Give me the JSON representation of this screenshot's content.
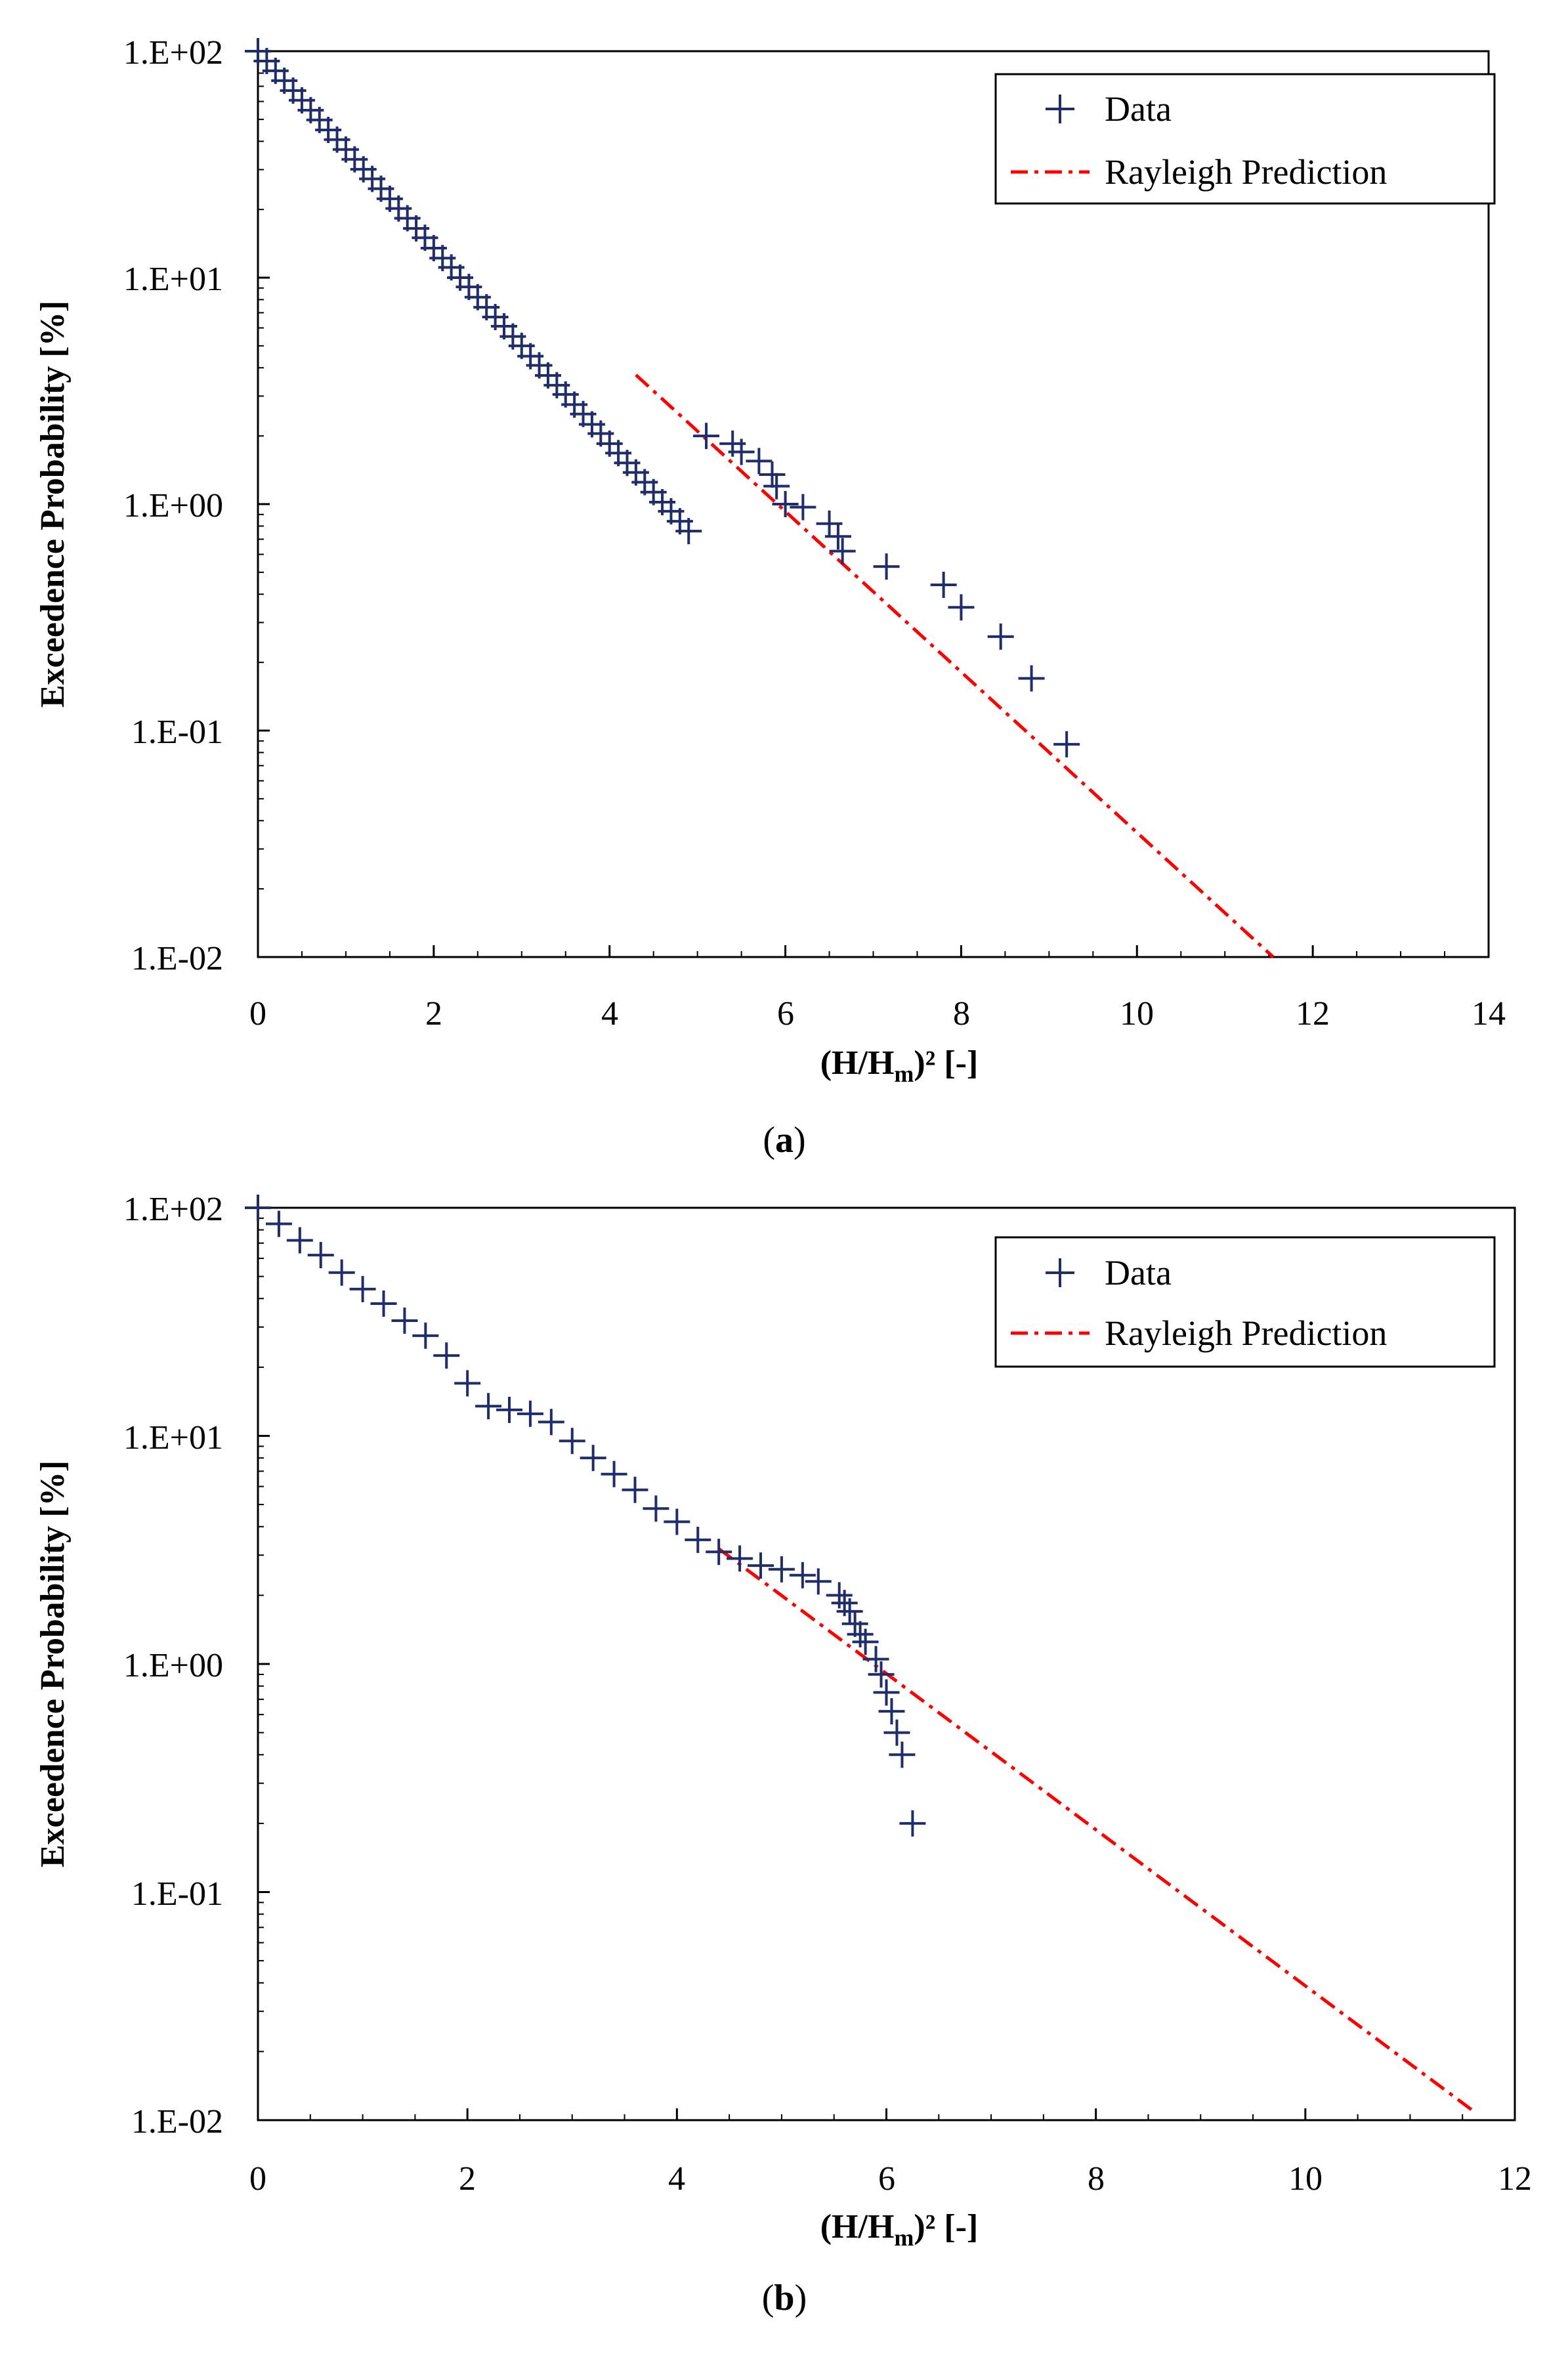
{
  "chart_data": [
    {
      "type": "scatter",
      "panel_label": {
        "open": "(",
        "letter": "a",
        "close": ")"
      },
      "xlabel": {
        "base": "(H/H",
        "sub": "m",
        "rest": ")² [-]"
      },
      "ylabel": "Exceedence Probability  [%]",
      "xlim": [
        0,
        14
      ],
      "ylim": [
        0.01,
        100
      ],
      "yscale": "log",
      "x_ticks": [
        "0",
        "2",
        "4",
        "6",
        "8",
        "10",
        "12",
        "14"
      ],
      "y_ticks": [
        "1.E+02",
        "1.E+01",
        "1.E+00",
        "1.E-01",
        "1.E-02"
      ],
      "legend": {
        "position": "top-right",
        "entries": [
          "Data",
          "Rayleigh Prediction"
        ]
      },
      "series": [
        {
          "name": "Data",
          "marker": "+",
          "color": "#1f2d6b",
          "x": [
            0.0,
            0.1,
            0.2,
            0.3,
            0.4,
            0.5,
            0.6,
            0.7,
            0.8,
            0.9,
            1.0,
            1.1,
            1.2,
            1.3,
            1.4,
            1.5,
            1.6,
            1.7,
            1.8,
            1.9,
            2.0,
            2.1,
            2.2,
            2.3,
            2.4,
            2.5,
            2.6,
            2.7,
            2.8,
            2.9,
            3.0,
            3.1,
            3.2,
            3.3,
            3.4,
            3.5,
            3.6,
            3.7,
            3.8,
            3.9,
            4.0,
            4.1,
            4.2,
            4.3,
            4.4,
            4.5,
            4.6,
            4.7,
            4.8,
            4.9,
            5.1,
            5.4,
            5.5,
            5.7,
            5.85,
            5.9,
            6.0,
            6.2,
            6.5,
            6.6,
            6.65,
            7.15,
            7.8,
            8.0,
            8.45,
            8.8,
            9.2
          ],
          "y": [
            100,
            90.5,
            81.9,
            74.1,
            67.0,
            60.7,
            54.9,
            49.7,
            44.9,
            40.7,
            36.8,
            33.3,
            30.1,
            27.3,
            24.7,
            22.3,
            20.2,
            18.3,
            16.5,
            15.0,
            13.5,
            12.2,
            11.1,
            10.0,
            9.1,
            8.2,
            7.4,
            6.7,
            6.1,
            5.5,
            5.0,
            4.5,
            4.1,
            3.7,
            3.35,
            3.05,
            2.75,
            2.5,
            2.25,
            2.05,
            1.85,
            1.68,
            1.52,
            1.38,
            1.25,
            1.13,
            1.02,
            0.93,
            0.84,
            0.76,
            2.0,
            1.85,
            1.7,
            1.55,
            1.35,
            1.2,
            1.0,
            0.97,
            0.82,
            0.72,
            0.62,
            0.53,
            0.44,
            0.35,
            0.26,
            0.17,
            0.087
          ]
        },
        {
          "name": "Rayleigh Prediction",
          "style": "dash-dot",
          "color": "#ff0000",
          "x": [
            4.3,
            11.55
          ],
          "y": [
            3.72,
            0.01
          ]
        }
      ]
    },
    {
      "type": "scatter",
      "panel_label": {
        "open": "(",
        "letter": "b",
        "close": ")"
      },
      "xlabel": {
        "base": "(H/H",
        "sub": "m",
        "rest": ")² [-]"
      },
      "ylabel": "Exceedence Probability  [%]",
      "xlim": [
        0,
        12
      ],
      "ylim": [
        0.01,
        100
      ],
      "yscale": "log",
      "x_ticks": [
        "0",
        "2",
        "4",
        "6",
        "8",
        "10",
        "12"
      ],
      "y_ticks": [
        "1.E+02",
        "1.E+01",
        "1.E+00",
        "1.E-01",
        "1.E-02"
      ],
      "legend": {
        "position": "top-right",
        "entries": [
          "Data",
          "Rayleigh Prediction"
        ]
      },
      "series": [
        {
          "name": "Data",
          "marker": "+",
          "color": "#1f2d6b",
          "x": [
            0.0,
            0.2,
            0.4,
            0.6,
            0.8,
            1.0,
            1.2,
            1.4,
            1.6,
            1.8,
            2.0,
            2.2,
            2.4,
            2.6,
            2.8,
            3.0,
            3.2,
            3.4,
            3.6,
            3.8,
            4.0,
            4.2,
            4.4,
            4.6,
            4.8,
            5.0,
            5.2,
            5.35,
            5.55,
            5.6,
            5.65,
            5.7,
            5.75,
            5.8,
            5.9,
            5.95,
            6.0,
            6.05,
            6.1,
            6.15,
            6.25
          ],
          "y": [
            100,
            85,
            72,
            62,
            52,
            44,
            38,
            32,
            27.5,
            22.5,
            17,
            13.5,
            13,
            12.5,
            11.5,
            9.5,
            8,
            6.8,
            5.8,
            4.8,
            4.2,
            3.5,
            3.1,
            2.9,
            2.7,
            2.6,
            2.45,
            2.3,
            2.0,
            1.85,
            1.7,
            1.5,
            1.35,
            1.25,
            1.05,
            0.9,
            0.75,
            0.62,
            0.5,
            0.4,
            0.2
          ]
        },
        {
          "name": "Rayleigh Prediction",
          "style": "dash-dot",
          "color": "#ff0000",
          "x": [
            4.4,
            11.6
          ],
          "y": [
            3.2,
            0.011
          ]
        }
      ]
    }
  ]
}
